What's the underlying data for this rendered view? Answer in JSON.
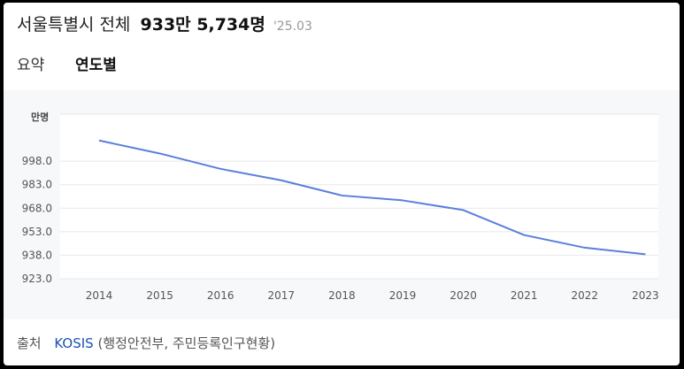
{
  "header": {
    "title": "서울특별시 전체",
    "total": "933만 5,734명",
    "date": "'25.03"
  },
  "tabs": [
    {
      "label": "요약",
      "active": false
    },
    {
      "label": "연도별",
      "active": true
    }
  ],
  "chart_data": {
    "type": "line",
    "title": "",
    "xlabel": "",
    "ylabel": "만명",
    "x": [
      "2014",
      "2015",
      "2016",
      "2017",
      "2018",
      "2019",
      "2020",
      "2021",
      "2022",
      "2023"
    ],
    "series": [
      {
        "values": [
          1011.2,
          1002.9,
          993.1,
          985.8,
          976.1,
          973.0,
          966.8,
          950.9,
          942.8,
          938.6
        ]
      }
    ],
    "yticks": [
      "923.0",
      "938.0",
      "953.0",
      "968.0",
      "983.0",
      "998.0"
    ],
    "ylim": [
      923.0,
      1028.0
    ],
    "grid": true,
    "line_color": "#5b7fdb"
  },
  "source": {
    "label": "출처",
    "link": "KOSIS",
    "detail": "(행정안전부, 주민등록인구현황)"
  }
}
